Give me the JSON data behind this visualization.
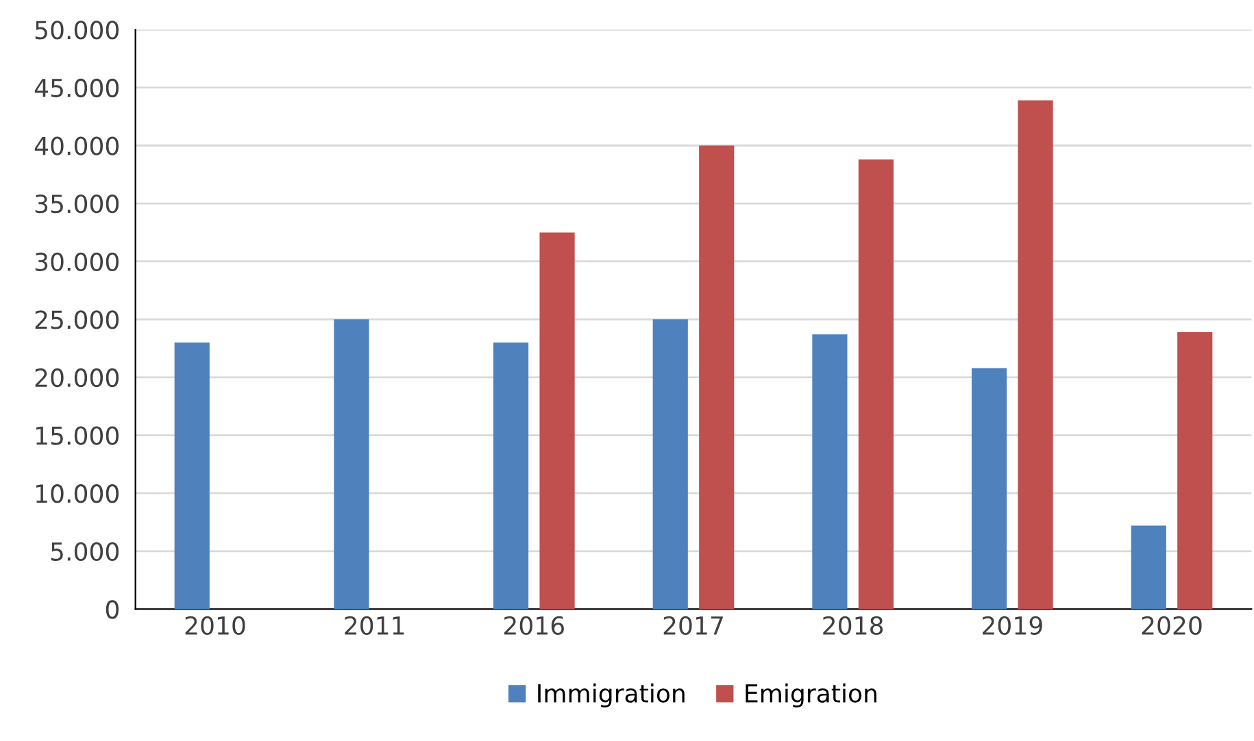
{
  "chart_data": {
    "type": "bar",
    "categories": [
      "2010",
      "2011",
      "2016",
      "2017",
      "2018",
      "2019",
      "2020"
    ],
    "series": [
      {
        "name": "Immigration",
        "color": "#4f81bd",
        "values": [
          23000,
          25000,
          23000,
          25000,
          23700,
          20800,
          7200
        ]
      },
      {
        "name": "Emigration",
        "color": "#c0504d",
        "values": [
          null,
          null,
          32500,
          40000,
          38800,
          43900,
          23900
        ]
      }
    ],
    "ylim": [
      0,
      50000
    ],
    "yticks": [
      0,
      {
        "value": 5000,
        "label": "5.000"
      },
      {
        "value": 10000,
        "label": "10.000"
      },
      {
        "value": 15000,
        "label": "15.000"
      },
      {
        "value": 20000,
        "label": "20.000"
      },
      {
        "value": 25000,
        "label": "25.000"
      },
      {
        "value": 30000,
        "label": "30.000"
      },
      {
        "value": 35000,
        "label": "35.000"
      },
      {
        "value": 40000,
        "label": "40.000"
      },
      {
        "value": 45000,
        "label": "45.000"
      },
      {
        "value": 50000,
        "label": "50.000"
      }
    ],
    "grid": "y",
    "legend": "bottom"
  }
}
